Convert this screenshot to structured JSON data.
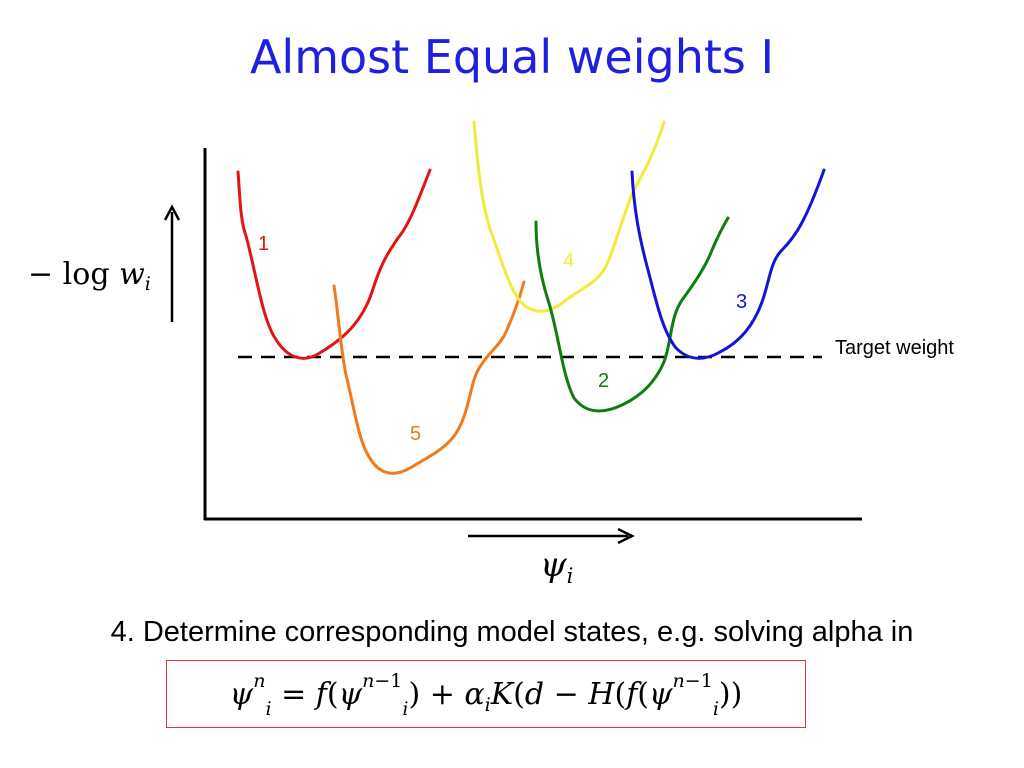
{
  "slide": {
    "title": "Almost Equal weights I",
    "step_text": "4. Determine corresponding model states, e.g. solving alpha in"
  },
  "figure": {
    "y_axis_label": "− log w_i",
    "x_axis_label": "ψ_i",
    "target_line_label": "Target weight",
    "curves": [
      {
        "label": "1",
        "color": "#e31414"
      },
      {
        "label": "2",
        "color": "#0f7d0f"
      },
      {
        "label": "3",
        "color": "#1414d8"
      },
      {
        "label": "4",
        "color": "#f0ec3a"
      },
      {
        "label": "5",
        "color": "#f07a1c"
      }
    ]
  },
  "formula": {
    "text": "ψ_i^n = f(ψ_i^{n−1}) + α_i K(d − H(f(ψ_i^{n−1}))",
    "border_color": "#e63a3a"
  }
}
